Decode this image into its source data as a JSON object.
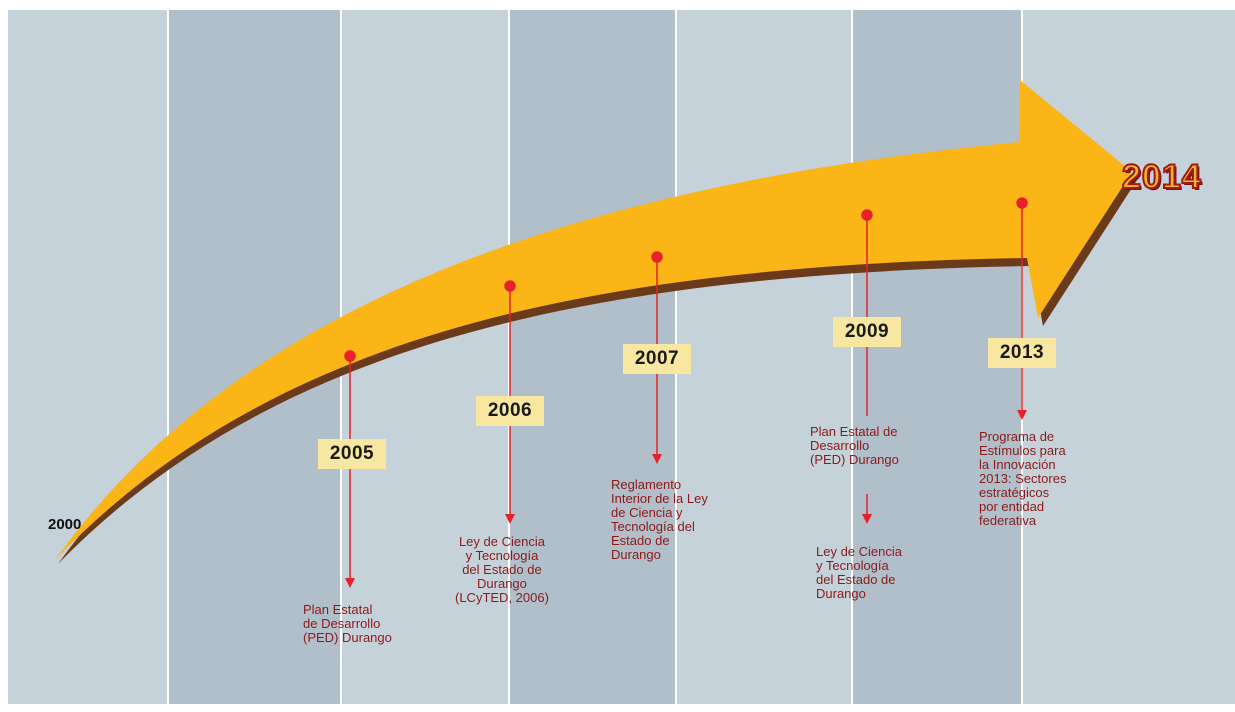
{
  "timeline": {
    "start_year": "2000",
    "end_year": "2014",
    "colors": {
      "arrow": "#fbb516",
      "arrow_shadow": "#6b3a1a",
      "connector": "#e8202a",
      "label_text": "#8b1a1a",
      "year_box": "#f7e7a1",
      "column_light": "#c5d2da",
      "column_dark": "#b0bfc9"
    },
    "events": [
      {
        "year": "2005",
        "lines": [
          "Plan Estatal",
          "de Desarrollo",
          "(PED) Durango"
        ]
      },
      {
        "year": "2006",
        "lines": [
          "Ley de Ciencia",
          "y Tecnología",
          "del Estado de",
          "Durango",
          "(LCyTED, 2006)"
        ]
      },
      {
        "year": "2007",
        "lines": [
          "Reglamento",
          "Interior de la Ley",
          "de Ciencia y",
          "Tecnología del",
          "Estado de",
          "Durango"
        ]
      },
      {
        "year": "2009",
        "lines": [
          "Plan Estatal de",
          "Desarrollo",
          "(PED) Durango"
        ],
        "lines_second": [
          "Ley de Ciencia",
          "y Tecnología",
          "del Estado de",
          "Durango"
        ]
      },
      {
        "year": "2013",
        "lines": [
          "Programa de",
          "Estímulos para",
          "la Innovación",
          "2013: Sectores",
          "estratégicos",
          "por entidad",
          "federativa"
        ]
      }
    ]
  }
}
